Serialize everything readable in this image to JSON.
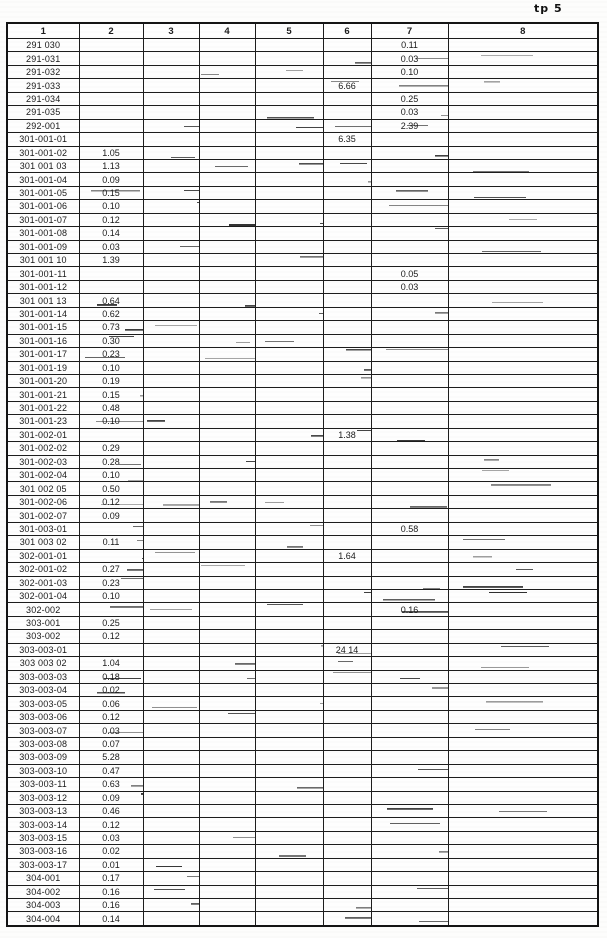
{
  "page": {
    "corner_label": "tp 5"
  },
  "table": {
    "headers": [
      "1",
      "2",
      "3",
      "4",
      "5",
      "6",
      "7",
      "8"
    ],
    "rows": [
      [
        "291 030",
        "",
        "",
        "",
        "",
        "",
        "0.11",
        ""
      ],
      [
        "291-031",
        "",
        "",
        "",
        "",
        "",
        "0.03",
        ""
      ],
      [
        "291-032",
        "",
        "",
        "",
        "",
        "",
        "0.10",
        ""
      ],
      [
        "291-033",
        "",
        "",
        "",
        "",
        "6.66",
        "",
        ""
      ],
      [
        "291-034",
        "",
        "",
        "",
        "",
        "",
        "0.25",
        ""
      ],
      [
        "291-035",
        "",
        "",
        "",
        "",
        "",
        "0.03",
        ""
      ],
      [
        "292-001",
        "",
        "",
        "",
        "",
        "",
        "2.39",
        ""
      ],
      [
        "301-001-01",
        "",
        "",
        "",
        "",
        "6.35",
        "",
        ""
      ],
      [
        "301-001-02",
        "1.05",
        "",
        "",
        "",
        "",
        "",
        ""
      ],
      [
        "301 001 03",
        "1.13",
        "",
        "",
        "",
        "",
        "",
        ""
      ],
      [
        "301-001-04",
        "0.09",
        "",
        "",
        "",
        "",
        "",
        ""
      ],
      [
        "301-001-05",
        "0.15",
        "",
        "",
        "",
        "",
        "",
        ""
      ],
      [
        "301-001-06",
        "0.10",
        "",
        "",
        "",
        "",
        "",
        ""
      ],
      [
        "301-001-07",
        "0.12",
        "",
        "",
        "",
        "",
        "",
        ""
      ],
      [
        "301-001-08",
        "0.14",
        "",
        "",
        "",
        "",
        "",
        ""
      ],
      [
        "301-001-09",
        "0.03",
        "",
        "",
        "",
        "",
        "",
        ""
      ],
      [
        "301 001 10",
        "1.39",
        "",
        "",
        "",
        "",
        "",
        ""
      ],
      [
        "301-001-11",
        "",
        "",
        "",
        "",
        "",
        "0.05",
        ""
      ],
      [
        "301-001-12",
        "",
        "",
        "",
        "",
        "",
        "0.03",
        ""
      ],
      [
        "301 001 13",
        "0.64",
        "",
        "",
        "",
        "",
        "",
        ""
      ],
      [
        "301-001-14",
        "0.62",
        "",
        "",
        "",
        "",
        "",
        ""
      ],
      [
        "301-001-15",
        "0.73",
        "",
        "",
        "",
        "",
        "",
        ""
      ],
      [
        "301-001-16",
        "0.30",
        "",
        "",
        "",
        "",
        "",
        ""
      ],
      [
        "301-001-17",
        "0.23",
        "",
        "",
        "",
        "",
        "",
        ""
      ],
      [
        "301-001-19",
        "0.10",
        "",
        "",
        "",
        "",
        "",
        ""
      ],
      [
        "301-001-20",
        "0.19",
        "",
        "",
        "",
        "",
        "",
        ""
      ],
      [
        "301-001-21",
        "0.15",
        "",
        "",
        "",
        "",
        "",
        ""
      ],
      [
        "301-001-22",
        "0.48",
        "",
        "",
        "",
        "",
        "",
        ""
      ],
      [
        "301-001-23",
        "0.10",
        "",
        "",
        "",
        "",
        "",
        ""
      ],
      [
        "301-002-01",
        "",
        "",
        "",
        "",
        "1.38",
        "",
        ""
      ],
      [
        "301-002-02",
        "0.29",
        "",
        "",
        "",
        "",
        "",
        ""
      ],
      [
        "301-002-03",
        "0.28",
        "",
        "",
        "",
        "",
        "",
        ""
      ],
      [
        "301-002-04",
        "0.10",
        "",
        "",
        "",
        "",
        "",
        ""
      ],
      [
        "301 002 05",
        "0.50",
        "",
        "",
        "",
        "",
        "",
        ""
      ],
      [
        "301-002-06",
        "0.12",
        "",
        "",
        "",
        "",
        "",
        ""
      ],
      [
        "301-002-07",
        "0.09",
        "",
        "",
        "",
        "",
        "",
        ""
      ],
      [
        "301-003-01",
        "",
        "",
        "",
        "",
        "",
        "0.58",
        ""
      ],
      [
        "301 003 02",
        "0.11",
        "",
        "",
        "",
        "",
        "",
        ""
      ],
      [
        "302-001-01",
        "",
        "",
        "",
        "",
        "1.64",
        "",
        ""
      ],
      [
        "302-001-02",
        "0.27",
        "",
        "",
        "",
        "",
        "",
        ""
      ],
      [
        "302-001-03",
        "0.23",
        "",
        "",
        "",
        "",
        "",
        ""
      ],
      [
        "302-001-04",
        "0.10",
        "",
        "",
        "",
        "",
        "",
        ""
      ],
      [
        "302-002",
        "",
        "",
        "",
        "",
        "",
        "0.16",
        ""
      ],
      [
        "303-001",
        "0.25",
        "",
        "",
        "",
        "",
        "",
        ""
      ],
      [
        "303-002",
        "0.12",
        "",
        "",
        "",
        "",
        "",
        ""
      ],
      [
        "303-003-01",
        "",
        "",
        "",
        "",
        "24 14",
        "",
        ""
      ],
      [
        "303 003 02",
        "1.04",
        "",
        "",
        "",
        "",
        "",
        ""
      ],
      [
        "303-003-03",
        "0.18",
        "",
        "",
        "",
        "",
        "",
        ""
      ],
      [
        "303-003-04",
        "0.02",
        "",
        "",
        "",
        "",
        "",
        ""
      ],
      [
        "303-003-05",
        "0.06",
        "",
        "",
        "",
        "",
        "",
        ""
      ],
      [
        "303-003-06",
        "0.12",
        "",
        "",
        "",
        "",
        "",
        ""
      ],
      [
        "303-003-07",
        "0.03",
        "",
        "",
        "",
        "",
        "",
        ""
      ],
      [
        "303-003-08",
        "0.07",
        "",
        "",
        "",
        "",
        "",
        ""
      ],
      [
        "303-003-09",
        "5.28",
        "",
        "",
        "",
        "",
        "",
        ""
      ],
      [
        "303-003-10",
        "0.47",
        "",
        "",
        "",
        "",
        "",
        ""
      ],
      [
        "303-003-11",
        "0.63",
        "",
        "",
        "",
        "",
        "",
        ""
      ],
      [
        "303-003-12",
        "0.09",
        "",
        "",
        "",
        "",
        "",
        ""
      ],
      [
        "303-003-13",
        "0.46",
        "",
        "",
        "",
        "",
        "",
        ""
      ],
      [
        "303-003-14",
        "0.12",
        "",
        "",
        "",
        "",
        "",
        ""
      ],
      [
        "303-003-15",
        "0.03",
        "",
        "",
        "",
        "",
        "",
        ""
      ],
      [
        "303-003-16",
        "0.02",
        "",
        "",
        "",
        "",
        "",
        ""
      ],
      [
        "303-003-17",
        "0.01",
        "",
        "",
        "",
        "",
        "",
        ""
      ],
      [
        "304-001",
        "0.17",
        "",
        "",
        "",
        "",
        "",
        ""
      ],
      [
        "304-002",
        "0.16",
        "",
        "",
        "",
        "",
        "",
        ""
      ],
      [
        "304-003",
        "0.16",
        "",
        "",
        "",
        "",
        "",
        ""
      ],
      [
        "304-004",
        "0.14",
        "",
        "",
        "",
        "",
        "",
        ""
      ]
    ]
  }
}
